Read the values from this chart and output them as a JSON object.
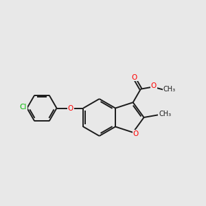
{
  "bg_color": "#e8e8e8",
  "bond_color": "#1a1a1a",
  "o_color": "#ff0000",
  "cl_color": "#00bb00",
  "lw": 1.4,
  "dbo": 0.055,
  "fs": 7.5,
  "xlim": [
    0,
    10
  ],
  "ylim": [
    0,
    10
  ]
}
